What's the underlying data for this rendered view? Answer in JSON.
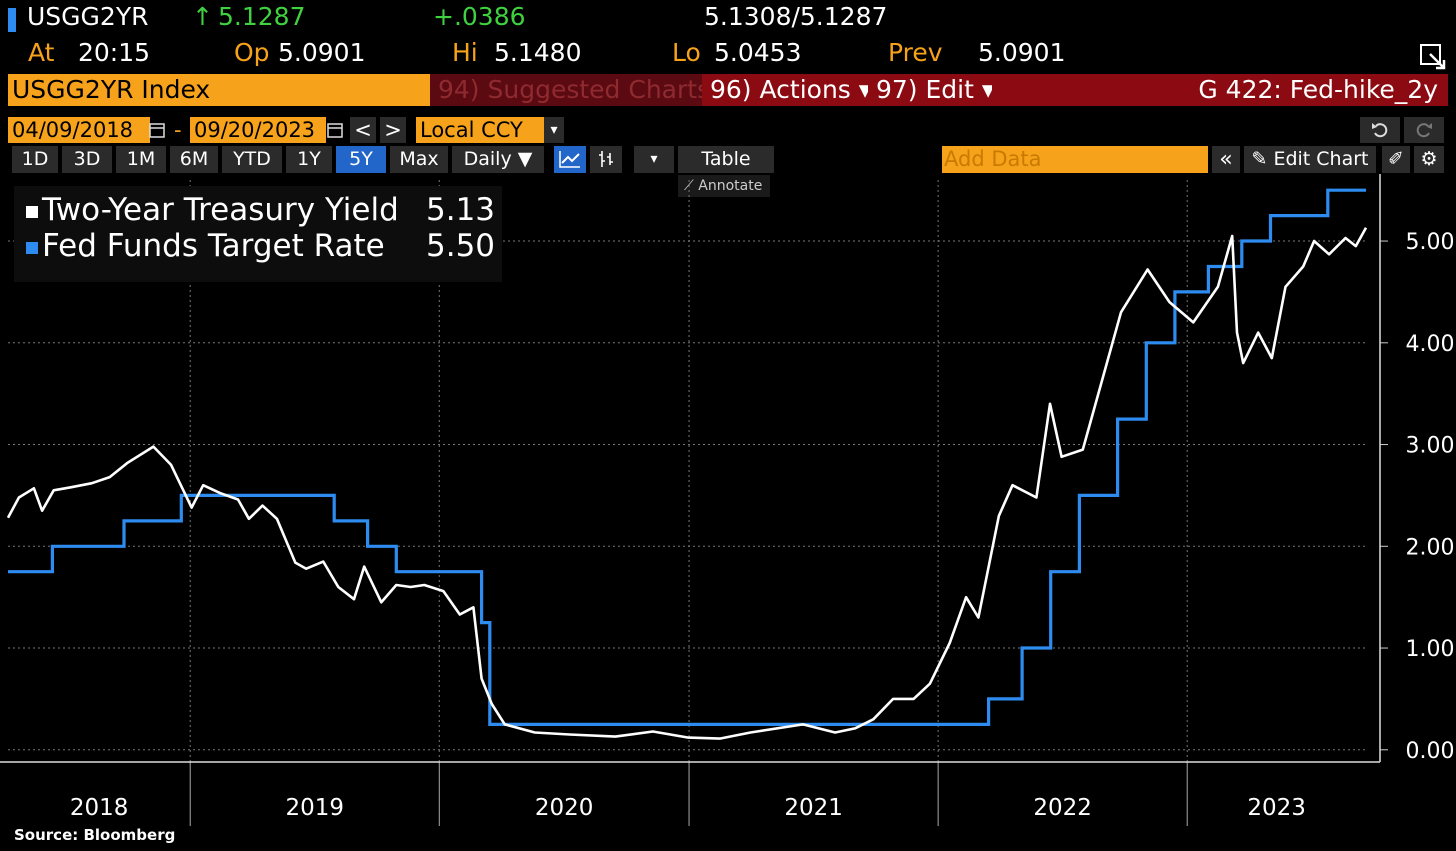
{
  "header": {
    "ticker": "USGG2YR",
    "last_arrow": "↑",
    "last": "5.1287",
    "change": "+.0386",
    "bid_ask": "5.1308/5.1287",
    "at_label": "At",
    "at_value": "20:15",
    "op_label": "Op",
    "op_value": "5.0901",
    "hi_label": "Hi",
    "hi_value": "5.1480",
    "lo_label": "Lo",
    "lo_value": "5.0453",
    "prev_label": "Prev",
    "prev_value": "5.0901"
  },
  "toolbar": {
    "security": "USGG2YR Index",
    "suggested": "94) Suggested Charts",
    "actions": "96) Actions ▾",
    "edit": "97) Edit ▾",
    "chart_name": "G 422: Fed-hike_2y"
  },
  "range": {
    "start": "04/09/2018",
    "dash": "-",
    "end": "09/20/2023",
    "prev_btn": "<",
    "next_btn": ">",
    "currency": "Local CCY"
  },
  "periods": [
    "1D",
    "3D",
    "1M",
    "6M",
    "YTD",
    "1Y",
    "5Y",
    "Max"
  ],
  "selected_period": "5Y",
  "controls": {
    "frequency": "Daily ▼",
    "table": "Table",
    "add_data_placeholder": "Add Data",
    "edit_chart": "Edit Chart",
    "annotate": "Annotate"
  },
  "colors": {
    "orange": "#f7a21b",
    "red": "#8c0a12",
    "blue": "#2e8cf0",
    "yield_line": "#ffffff"
  },
  "source": "Source: Bloomberg",
  "chart_data": {
    "type": "line",
    "x_labels": [
      "2018",
      "2019",
      "2020",
      "2021",
      "2022",
      "2023"
    ],
    "y_ticks": [
      "0.00",
      "1.00",
      "2.00",
      "3.00",
      "4.00",
      "5.00"
    ],
    "ylim": [
      -0.12,
      5.6
    ],
    "xlim": [
      "2018-04-09",
      "2023-09-20"
    ],
    "grid": true,
    "legend_position": "top-left",
    "series": [
      {
        "name": "Two-Year Treasury Yield",
        "last_value": "5.13",
        "color": "#ffffff",
        "points": [
          [
            "2018-04-09",
            2.28
          ],
          [
            "2018-04-25",
            2.48
          ],
          [
            "2018-05-17",
            2.57
          ],
          [
            "2018-05-29",
            2.35
          ],
          [
            "2018-06-15",
            2.55
          ],
          [
            "2018-07-10",
            2.58
          ],
          [
            "2018-08-10",
            2.62
          ],
          [
            "2018-09-05",
            2.68
          ],
          [
            "2018-10-01",
            2.82
          ],
          [
            "2018-11-08",
            2.98
          ],
          [
            "2018-12-04",
            2.8
          ],
          [
            "2019-01-03",
            2.38
          ],
          [
            "2019-01-20",
            2.6
          ],
          [
            "2019-02-15",
            2.52
          ],
          [
            "2019-03-12",
            2.46
          ],
          [
            "2019-03-28",
            2.27
          ],
          [
            "2019-04-17",
            2.4
          ],
          [
            "2019-05-08",
            2.27
          ],
          [
            "2019-06-04",
            1.84
          ],
          [
            "2019-06-20",
            1.78
          ],
          [
            "2019-07-15",
            1.85
          ],
          [
            "2019-08-06",
            1.6
          ],
          [
            "2019-08-29",
            1.48
          ],
          [
            "2019-09-13",
            1.8
          ],
          [
            "2019-10-08",
            1.45
          ],
          [
            "2019-10-30",
            1.62
          ],
          [
            "2019-11-20",
            1.6
          ],
          [
            "2019-12-10",
            1.62
          ],
          [
            "2020-01-07",
            1.56
          ],
          [
            "2020-01-31",
            1.33
          ],
          [
            "2020-02-20",
            1.4
          ],
          [
            "2020-03-03",
            0.7
          ],
          [
            "2020-03-18",
            0.45
          ],
          [
            "2020-04-06",
            0.25
          ],
          [
            "2020-05-20",
            0.17
          ],
          [
            "2020-07-10",
            0.15
          ],
          [
            "2020-09-15",
            0.13
          ],
          [
            "2020-11-09",
            0.18
          ],
          [
            "2020-12-31",
            0.12
          ],
          [
            "2021-02-15",
            0.11
          ],
          [
            "2021-04-01",
            0.17
          ],
          [
            "2021-06-17",
            0.25
          ],
          [
            "2021-08-03",
            0.17
          ],
          [
            "2021-09-01",
            0.21
          ],
          [
            "2021-09-28",
            0.3
          ],
          [
            "2021-10-27",
            0.5
          ],
          [
            "2021-11-26",
            0.5
          ],
          [
            "2021-12-20",
            0.65
          ],
          [
            "2022-01-18",
            1.05
          ],
          [
            "2022-02-11",
            1.5
          ],
          [
            "2022-03-01",
            1.3
          ],
          [
            "2022-03-31",
            2.3
          ],
          [
            "2022-04-20",
            2.6
          ],
          [
            "2022-05-25",
            2.48
          ],
          [
            "2022-06-14",
            3.4
          ],
          [
            "2022-07-01",
            2.88
          ],
          [
            "2022-08-01",
            2.95
          ],
          [
            "2022-09-26",
            4.3
          ],
          [
            "2022-11-04",
            4.72
          ],
          [
            "2022-12-06",
            4.4
          ],
          [
            "2023-01-10",
            4.2
          ],
          [
            "2023-02-15",
            4.55
          ],
          [
            "2023-03-08",
            5.05
          ],
          [
            "2023-03-15",
            4.1
          ],
          [
            "2023-03-24",
            3.8
          ],
          [
            "2023-04-15",
            4.1
          ],
          [
            "2023-05-05",
            3.85
          ],
          [
            "2023-05-25",
            4.55
          ],
          [
            "2023-06-20",
            4.75
          ],
          [
            "2023-07-06",
            5.0
          ],
          [
            "2023-07-28",
            4.87
          ],
          [
            "2023-08-21",
            5.03
          ],
          [
            "2023-09-05",
            4.95
          ],
          [
            "2023-09-20",
            5.13
          ]
        ]
      },
      {
        "name": "Fed Funds Target Rate",
        "last_value": "5.50",
        "color": "#2e8cf0",
        "steps": [
          [
            "2018-04-09",
            1.75
          ],
          [
            "2018-06-13",
            2.0
          ],
          [
            "2018-09-26",
            2.25
          ],
          [
            "2018-12-19",
            2.5
          ],
          [
            "2019-07-31",
            2.25
          ],
          [
            "2019-09-18",
            2.0
          ],
          [
            "2019-10-30",
            1.75
          ],
          [
            "2020-03-03",
            1.25
          ],
          [
            "2020-03-15",
            0.25
          ],
          [
            "2022-03-16",
            0.5
          ],
          [
            "2022-05-04",
            1.0
          ],
          [
            "2022-06-15",
            1.75
          ],
          [
            "2022-07-27",
            2.5
          ],
          [
            "2022-09-21",
            3.25
          ],
          [
            "2022-11-02",
            4.0
          ],
          [
            "2022-12-14",
            4.5
          ],
          [
            "2023-02-01",
            4.75
          ],
          [
            "2023-03-22",
            5.0
          ],
          [
            "2023-05-03",
            5.25
          ],
          [
            "2023-07-26",
            5.5
          ],
          [
            "2023-09-20",
            5.5
          ]
        ]
      }
    ]
  }
}
